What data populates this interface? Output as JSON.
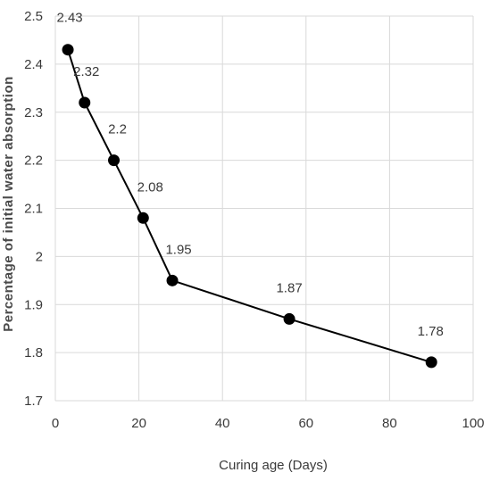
{
  "chart_data": {
    "type": "line",
    "title": "",
    "xlabel": "Curing age (Days)",
    "ylabel": "Percentage of initial water absorption",
    "xlim": [
      0,
      100
    ],
    "ylim": [
      1.7,
      2.5
    ],
    "xticks": [
      0,
      20,
      40,
      60,
      80,
      100
    ],
    "yticks": [
      1.7,
      1.8,
      1.9,
      2.0,
      2.1,
      2.2,
      2.3,
      2.4,
      2.5
    ],
    "ytick_labels": [
      "1.7",
      "1.8",
      "1.9",
      "2",
      "2.1",
      "2.2",
      "2.3",
      "2.4",
      "2.5"
    ],
    "grid": true,
    "legend": "none",
    "series": [
      {
        "x": [
          3,
          7,
          14,
          21,
          28,
          56,
          90
        ],
        "y": [
          2.43,
          2.32,
          2.2,
          2.08,
          1.95,
          1.87,
          1.78
        ],
        "labels": [
          "2.43",
          "2.32",
          "2.2",
          "2.08",
          "1.95",
          "1.87",
          "1.78"
        ],
        "color": "#000000",
        "marker": "circle"
      }
    ]
  }
}
